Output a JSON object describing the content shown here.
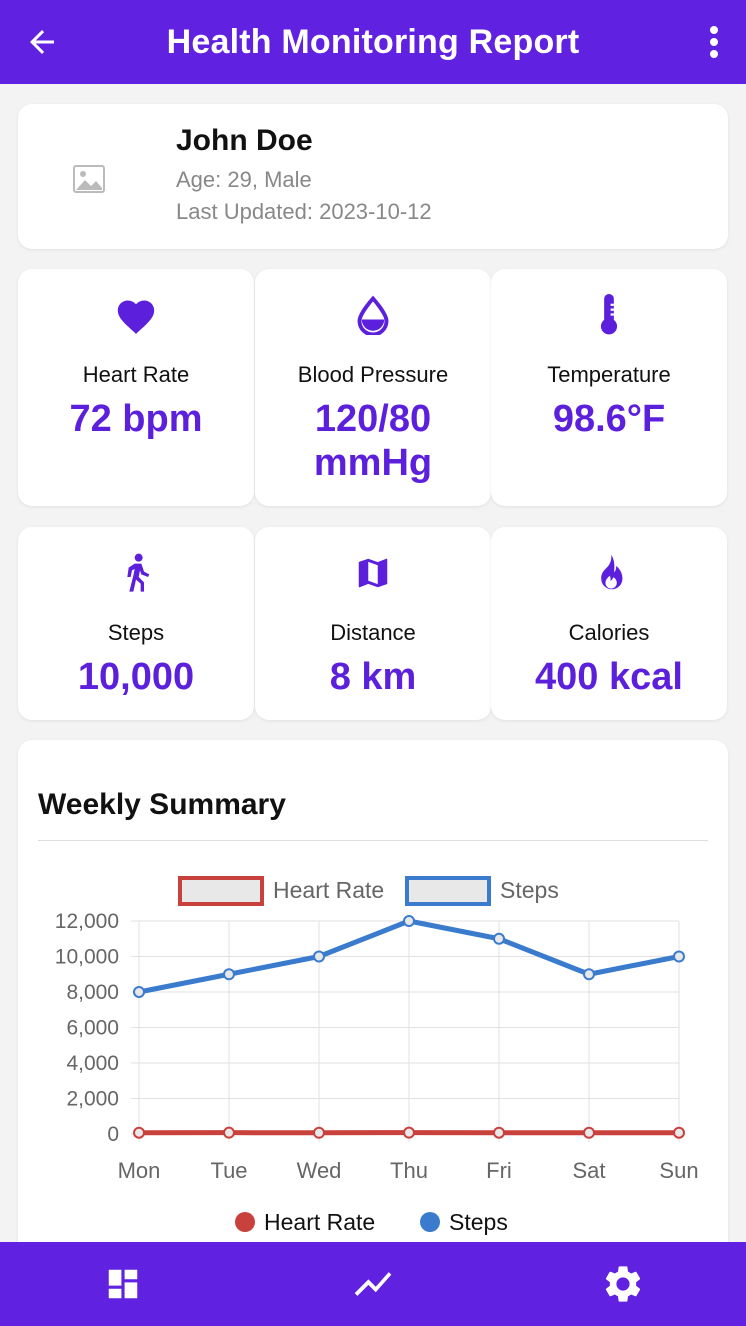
{
  "appbar": {
    "title": "Health Monitoring Report",
    "back_icon": "arrow-left-icon",
    "menu_icon": "more-vertical-icon"
  },
  "profile": {
    "name": "John Doe",
    "age_gender": "Age: 29, Male",
    "last_updated": "Last Updated: 2023-10-12",
    "avatar_icon": "image-placeholder-icon"
  },
  "stats": [
    {
      "icon": "heart-icon",
      "label": "Heart Rate",
      "value": "72 bpm"
    },
    {
      "icon": "drop-icon",
      "label": "Blood Pressure",
      "value": "120/80 mmHg"
    },
    {
      "icon": "thermometer-icon",
      "label": "Temperature",
      "value": "98.6°F"
    },
    {
      "icon": "walking-icon",
      "label": "Steps",
      "value": "10,000"
    },
    {
      "icon": "map-icon",
      "label": "Distance",
      "value": "8 km"
    },
    {
      "icon": "fire-icon",
      "label": "Calories",
      "value": "400 kcal"
    }
  ],
  "weekly": {
    "title": "Weekly Summary"
  },
  "chart_data": {
    "type": "line",
    "categories": [
      "Mon",
      "Tue",
      "Wed",
      "Thu",
      "Fri",
      "Sat",
      "Sun"
    ],
    "series": [
      {
        "name": "Heart Rate",
        "values": [
          72,
          74,
          70,
          76,
          73,
          71,
          72
        ],
        "color": "#c8413c"
      },
      {
        "name": "Steps",
        "values": [
          8000,
          9000,
          10000,
          12000,
          11000,
          9000,
          10000
        ],
        "color": "#3a7bcd"
      }
    ],
    "ylim": [
      0,
      12000
    ],
    "yticks": [
      "0",
      "2,000",
      "4,000",
      "6,000",
      "8,000",
      "10,000",
      "12,000"
    ],
    "grid": true,
    "legend": "top and bottom"
  },
  "bottom_nav": [
    {
      "icon": "dashboard-icon",
      "name": "nav-dashboard"
    },
    {
      "icon": "trending-icon",
      "name": "nav-trends"
    },
    {
      "icon": "settings-gear-icon",
      "name": "nav-settings"
    }
  ],
  "colors": {
    "primary": "#6121e0",
    "accent_text": "#5c1fdc",
    "background": "#f3f3f3"
  }
}
